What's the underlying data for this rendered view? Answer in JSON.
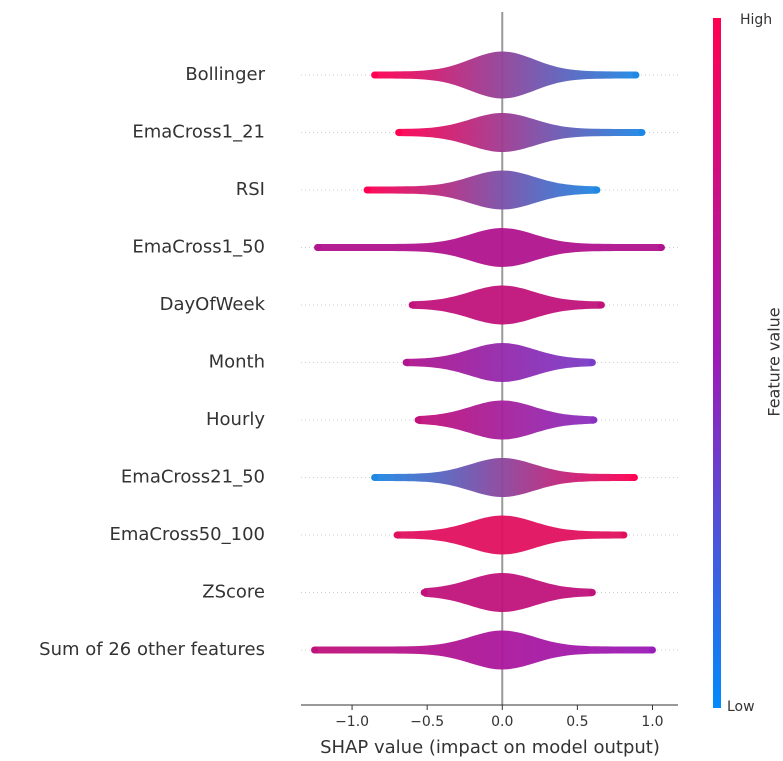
{
  "chart_data": {
    "type": "beeswarm",
    "x_label": "SHAP value (impact on model output)",
    "colorbar_label": "Feature value",
    "colorbar_high": "High",
    "colorbar_low": "Low",
    "colorbar_colors": [
      "#ff0052",
      "#9a1cb8",
      "#008bfb"
    ],
    "categories": [
      "Bollinger",
      "EmaCross1_21",
      "RSI",
      "EmaCross1_50",
      "DayOfWeek",
      "Month",
      "Hourly",
      "EmaCross21_50",
      "EmaCross50_100",
      "ZScore",
      "Sum of 26 other features"
    ],
    "min": [
      -0.85,
      -0.69,
      -0.9,
      -1.23,
      -0.6,
      -0.64,
      -0.56,
      -0.85,
      -0.7,
      -0.52,
      -1.25
    ],
    "max": [
      0.89,
      0.93,
      0.63,
      1.06,
      0.66,
      0.6,
      0.61,
      0.88,
      0.81,
      0.6,
      1.0
    ],
    "left_colors": [
      "#ff0052",
      "#ff0052",
      "#ff0052",
      "#b0148e",
      "#c0127a",
      "#b0148e",
      "#c0127a",
      "#1e88e5",
      "#e0105e",
      "#c0127a",
      "#c0127a"
    ],
    "right_colors": [
      "#1e88e5",
      "#1e88e5",
      "#1e88e5",
      "#b0148e",
      "#c0127a",
      "#7a3cc8",
      "#8a30c0",
      "#ff0052",
      "#e0105e",
      "#c0127a",
      "#9a1cb8"
    ],
    "xlim": [
      -1.34,
      1.17
    ],
    "xticks": [
      {
        "value": -1,
        "label": "−1.0"
      },
      {
        "value": -0.5,
        "label": "−0.5"
      },
      {
        "value": 0,
        "label": "0.0"
      },
      0.5,
      {
        "value": 1,
        "label": "1.0"
      }
    ]
  }
}
